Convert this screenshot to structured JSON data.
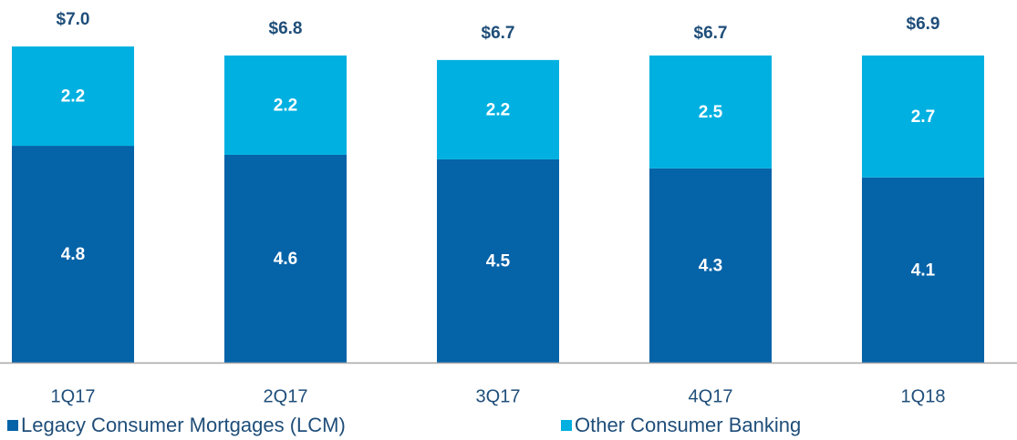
{
  "chart_data": {
    "type": "stacked_bar",
    "categories": [
      "1Q17",
      "2Q17",
      "3Q17",
      "4Q17",
      "1Q18"
    ],
    "series": [
      {
        "name": "Legacy Consumer Mortgages (LCM)",
        "color": "#0563a8",
        "values": [
          4.8,
          4.6,
          4.5,
          4.3,
          4.1
        ]
      },
      {
        "name": "Other Consumer Banking",
        "color": "#00b0e0",
        "values": [
          2.2,
          2.2,
          2.2,
          2.5,
          2.7
        ]
      }
    ],
    "totals": [
      7.0,
      6.8,
      6.7,
      6.7,
      6.9
    ],
    "total_labels": [
      "$7.0",
      "$6.8",
      "$6.7",
      "$6.7",
      "$6.9"
    ],
    "ylim": [
      0,
      7
    ],
    "legend": "bottom-left"
  }
}
